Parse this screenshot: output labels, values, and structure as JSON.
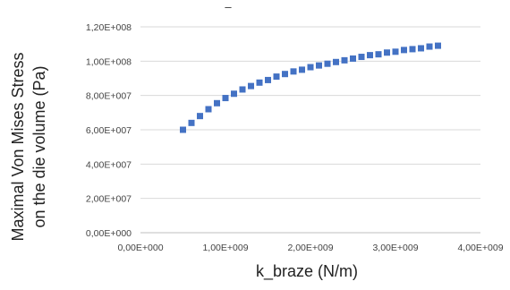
{
  "chart_data": {
    "type": "scatter",
    "title": "–",
    "xlabel": "k_braze (N/m)",
    "ylabel_lines": [
      "Maximal Von Mises Stress",
      "on the die volume (Pa)"
    ],
    "xlim": [
      0,
      4000000000
    ],
    "ylim": [
      0,
      120000000
    ],
    "x_ticks": [
      0,
      1000000000,
      2000000000,
      3000000000,
      4000000000
    ],
    "x_tick_labels": [
      "0,00E+000",
      "1,00E+009",
      "2,00E+009",
      "3,00E+009",
      "4,00E+009"
    ],
    "y_ticks": [
      0,
      20000000,
      40000000,
      60000000,
      80000000,
      100000000,
      120000000
    ],
    "y_tick_labels": [
      "0,00E+000",
      "2,00E+007",
      "4,00E+007",
      "6,00E+007",
      "8,00E+007",
      "1,00E+008",
      "1,20E+008"
    ],
    "grid": "horizontal",
    "marker_color": "#4472c4",
    "x": [
      500000000,
      600000000,
      700000000,
      800000000,
      900000000,
      1000000000,
      1100000000,
      1200000000,
      1300000000,
      1400000000,
      1500000000,
      1600000000,
      1700000000,
      1800000000,
      1900000000,
      2000000000,
      2100000000,
      2200000000,
      2300000000,
      2400000000,
      2500000000,
      2600000000,
      2700000000,
      2800000000,
      2900000000,
      3000000000,
      3100000000,
      3200000000,
      3300000000,
      3400000000,
      3500000000
    ],
    "y": [
      60000000,
      64000000,
      68000000,
      72000000,
      75500000,
      78500000,
      81000000,
      83500000,
      85500000,
      87500000,
      89000000,
      91000000,
      92500000,
      94000000,
      95000000,
      96500000,
      97500000,
      98500000,
      99500000,
      100500000,
      101500000,
      102500000,
      103500000,
      104000000,
      105000000,
      105500000,
      106500000,
      107000000,
      107500000,
      108500000,
      109000000
    ]
  }
}
